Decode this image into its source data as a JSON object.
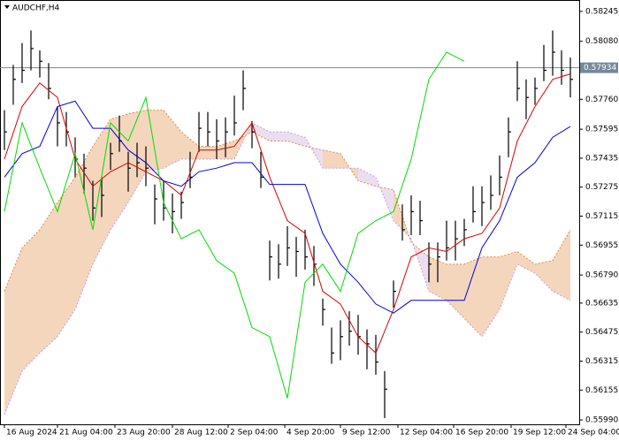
{
  "chart_data": {
    "type": "ohlc",
    "title": "AUDCHF,H4",
    "ylim": [
      0.55966,
      0.58308
    ],
    "yticks": [
      0.58245,
      {
        "value": 0.5808,
        "label": "0.58080"
      },
      {
        "value": 0.5776,
        "label": "0.57760"
      },
      0.57595,
      0.57435,
      0.57275,
      0.57115,
      0.56955,
      {
        "value": 0.5679,
        "label": "0.56790"
      },
      0.56635,
      0.56475,
      0.56315,
      0.56155,
      {
        "value": 0.5599,
        "label": "0.55990"
      }
    ],
    "xlim": [
      -0.5,
      65
    ],
    "xticks": [
      {
        "value": 0,
        "label": "16 Aug 2024"
      },
      {
        "value": 6,
        "label": "21 Aug 04:00"
      },
      {
        "value": 12.5,
        "label": "23 Aug 20:00"
      },
      {
        "value": 19,
        "label": "28 Aug 12:00"
      },
      {
        "value": 25.3,
        "label": "2 Sep 04:00"
      },
      {
        "value": 31.7,
        "label": "4 Sep 20:00"
      },
      {
        "value": 38,
        "label": "9 Sep 12:00"
      },
      {
        "value": 44.5,
        "label": "12 Sep 04:00"
      },
      {
        "value": 50.8,
        "label": "16 Sep 20:00"
      },
      {
        "value": 57.3,
        "label": "19 Sep 12:00"
      },
      {
        "value": 63.5,
        "label": "24 Sep 04:00"
      }
    ],
    "last_price": 0.57934,
    "last_price_color": "#778899",
    "bars": {
      "color": "#000000",
      "x": [
        0,
        1,
        2,
        3,
        4,
        5,
        6,
        7,
        8,
        9,
        10,
        11,
        12,
        13,
        14,
        15,
        16,
        17,
        18,
        19,
        20,
        21,
        22,
        23,
        24,
        25,
        26,
        27,
        28,
        29,
        30,
        31,
        32,
        33,
        34,
        35,
        36,
        37,
        38,
        39,
        40,
        41,
        42,
        43,
        44,
        45,
        46,
        47,
        48,
        49,
        50,
        51,
        52,
        53,
        54,
        55,
        56,
        57,
        58,
        59,
        60,
        61,
        62,
        63,
        64
      ],
      "high": [
        0.577,
        0.5795,
        0.5807,
        0.5814,
        0.5803,
        0.5796,
        0.5772,
        0.5769,
        0.5755,
        0.5746,
        0.5731,
        0.5733,
        0.5752,
        0.5767,
        0.5747,
        0.5752,
        0.575,
        0.5729,
        0.5731,
        0.5724,
        0.5725,
        0.5747,
        0.5769,
        0.5769,
        0.5765,
        0.5766,
        0.5778,
        0.5792,
        0.5764,
        0.5747,
        0.5698,
        0.5696,
        0.5706,
        0.57,
        0.5704,
        0.5695,
        0.5666,
        0.565,
        0.5654,
        0.5659,
        0.5657,
        0.5649,
        0.5646,
        0.5626,
        0.5676,
        0.5718,
        0.5723,
        0.572,
        0.5697,
        0.5697,
        0.5709,
        0.5709,
        0.571,
        0.5728,
        0.5728,
        0.5734,
        0.5745,
        0.5766,
        0.5797,
        0.5787,
        0.5788,
        0.5806,
        0.5814,
        0.5803,
        0.5799
      ],
      "low": [
        0.5748,
        0.5773,
        0.5785,
        0.5792,
        0.5788,
        0.5776,
        0.575,
        0.575,
        0.5733,
        0.5724,
        0.5709,
        0.5711,
        0.5737,
        0.5747,
        0.5725,
        0.5733,
        0.5728,
        0.5707,
        0.5709,
        0.5702,
        0.571,
        0.5727,
        0.5747,
        0.575,
        0.5743,
        0.5744,
        0.5756,
        0.577,
        0.5749,
        0.5727,
        0.5676,
        0.5677,
        0.5684,
        0.5678,
        0.5682,
        0.5673,
        0.5651,
        0.563,
        0.5632,
        0.564,
        0.5635,
        0.5627,
        0.5624,
        0.56,
        0.5661,
        0.5698,
        0.5701,
        0.5701,
        0.5675,
        0.5675,
        0.5687,
        0.5687,
        0.5695,
        0.5708,
        0.5706,
        0.5715,
        0.5723,
        0.5744,
        0.5775,
        0.5765,
        0.5773,
        0.5786,
        0.5789,
        0.5784,
        0.5777
      ],
      "close": [
        0.5758,
        0.5787,
        0.5792,
        0.5804,
        0.5797,
        0.5782,
        0.5763,
        0.5758,
        0.5743,
        0.5738,
        0.5716,
        0.5723,
        0.5746,
        0.5753,
        0.5738,
        0.5741,
        0.5738,
        0.5721,
        0.5716,
        0.5714,
        0.5719,
        0.5733,
        0.576,
        0.5758,
        0.5753,
        0.5758,
        0.5763,
        0.5782,
        0.5758,
        0.5733,
        0.5689,
        0.5685,
        0.5694,
        0.5692,
        0.5689,
        0.5685,
        0.566,
        0.5636,
        0.5645,
        0.5648,
        0.5645,
        0.5641,
        0.5631,
        0.5616,
        0.567,
        0.5704,
        0.5714,
        0.5709,
        0.5685,
        0.5689,
        0.5694,
        0.5699,
        0.5704,
        0.5714,
        0.5719,
        0.5723,
        0.5733,
        0.5758,
        0.5782,
        0.5777,
        0.5782,
        0.5792,
        0.5802,
        0.5792,
        0.5787
      ]
    },
    "series": [
      {
        "color": "#dd0000",
        "x": [
          0,
          2,
          4,
          6,
          8,
          10,
          12,
          14,
          16,
          18,
          20,
          22,
          24,
          26,
          28,
          30,
          32,
          34,
          36,
          38,
          40,
          42,
          44,
          46,
          48,
          50,
          52,
          54,
          56,
          58,
          60,
          62,
          64
        ],
        "values": [
          0.5743,
          0.5772,
          0.5785,
          0.5777,
          0.5743,
          0.5728,
          0.5736,
          0.5741,
          0.5736,
          0.5731,
          0.5723,
          0.5748,
          0.5748,
          0.575,
          0.5763,
          0.5733,
          0.5709,
          0.5702,
          0.567,
          0.5663,
          0.5645,
          0.5636,
          0.566,
          0.5689,
          0.5694,
          0.5692,
          0.5699,
          0.5702,
          0.5716,
          0.5753,
          0.5772,
          0.5787,
          0.579
        ]
      },
      {
        "color": "#0000dd",
        "x": [
          0,
          2,
          4,
          6,
          8,
          10,
          12,
          14,
          16,
          18,
          20,
          22,
          24,
          26,
          28,
          30,
          32,
          34,
          36,
          38,
          40,
          42,
          44,
          46,
          48,
          50,
          52,
          54,
          56,
          58,
          60,
          62,
          64
        ],
        "values": [
          0.5733,
          0.5746,
          0.575,
          0.5772,
          0.5775,
          0.576,
          0.576,
          0.5748,
          0.5741,
          0.5731,
          0.5728,
          0.5736,
          0.5738,
          0.5741,
          0.5741,
          0.5729,
          0.5729,
          0.5729,
          0.5702,
          0.5685,
          0.5675,
          0.5663,
          0.5658,
          0.5665,
          0.5665,
          0.5665,
          0.5665,
          0.5694,
          0.5709,
          0.5733,
          0.5741,
          0.5755,
          0.5761
        ]
      },
      {
        "color": "#00dd00",
        "x": [
          0,
          2,
          4,
          6,
          8,
          10,
          12,
          14,
          16,
          18,
          20,
          22,
          24,
          26,
          28,
          30,
          32,
          34,
          36,
          38,
          40,
          42,
          44,
          46,
          48,
          50,
          52
        ],
        "values": [
          0.5714,
          0.5763,
          0.5738,
          0.5714,
          0.5746,
          0.5704,
          0.5763,
          0.5753,
          0.5777,
          0.5719,
          0.5699,
          0.5704,
          0.5687,
          0.568,
          0.565,
          0.5645,
          0.5611,
          0.5675,
          0.5685,
          0.567,
          0.5702,
          0.5709,
          0.5714,
          0.5743,
          0.5787,
          0.5802,
          0.5797
        ]
      }
    ],
    "cloud": {
      "x": [
        0,
        2,
        4,
        6,
        8,
        10,
        12,
        14,
        16,
        18,
        20,
        22,
        24,
        26,
        28,
        30,
        32,
        34,
        36,
        38,
        40,
        42,
        44,
        46,
        48,
        50,
        52,
        54,
        56,
        58,
        60,
        62,
        64
      ],
      "span_a": {
        "color": "#e08a40",
        "values": [
          0.567,
          0.5694,
          0.5704,
          0.5719,
          0.5733,
          0.575,
          0.5765,
          0.5768,
          0.577,
          0.577,
          0.5758,
          0.575,
          0.575,
          0.5753,
          0.5758,
          0.5753,
          0.5753,
          0.575,
          0.5748,
          0.5746,
          0.5731,
          0.5728,
          0.5726,
          0.5697,
          0.5689,
          0.5685,
          0.5685,
          0.5689,
          0.5689,
          0.5692,
          0.5685,
          0.5687,
          0.5704
        ]
      },
      "span_b": {
        "color": "#c8a0d8",
        "values": [
          0.5602,
          0.5626,
          0.5636,
          0.5645,
          0.566,
          0.5685,
          0.5704,
          0.5719,
          0.5736,
          0.5738,
          0.5743,
          0.5743,
          0.5743,
          0.5743,
          0.5763,
          0.5758,
          0.5758,
          0.5755,
          0.5738,
          0.5738,
          0.5738,
          0.5733,
          0.5709,
          0.5699,
          0.567,
          0.5665,
          0.5655,
          0.5645,
          0.566,
          0.5685,
          0.568,
          0.567,
          0.5665
        ]
      }
    }
  }
}
